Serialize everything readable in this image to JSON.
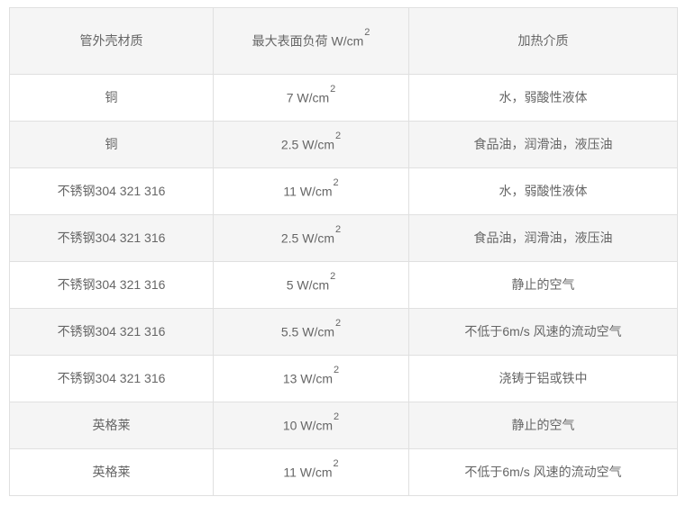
{
  "table": {
    "header": {
      "material": "管外壳材质",
      "load": "最大表面负荷 W/cm",
      "load_sup": "2",
      "medium": "加热介质"
    },
    "colors": {
      "border": "#e0e0e0",
      "stripe_bg": "#f5f5f5",
      "text": "#666666"
    },
    "rows": [
      {
        "material": "铜",
        "load": "7 W/cm",
        "load_sup": "2",
        "medium": "水，弱酸性液体"
      },
      {
        "material": "铜",
        "load": "2.5 W/cm",
        "load_sup": "2",
        "medium": "食品油，润滑油，液压油"
      },
      {
        "material": "不锈钢304 321 316",
        "load": "11 W/cm",
        "load_sup": "2",
        "medium": "水，弱酸性液体"
      },
      {
        "material": "不锈钢304 321 316",
        "load": "2.5 W/cm",
        "load_sup": "2",
        "medium": "食品油，润滑油，液压油"
      },
      {
        "material": "不锈钢304 321 316",
        "load": "5 W/cm",
        "load_sup": "2",
        "medium": "静止的空气"
      },
      {
        "material": "不锈钢304 321 316",
        "load": "5.5 W/cm",
        "load_sup": "2",
        "medium": "不低于6m/s 风速的流动空气"
      },
      {
        "material": "不锈钢304 321 316",
        "load": "13 W/cm",
        "load_sup": "2",
        "medium": "浇铸于铝或铁中"
      },
      {
        "material": "英格莱",
        "load": "10 W/cm",
        "load_sup": "2",
        "medium": "静止的空气"
      },
      {
        "material": "英格莱",
        "load": "11 W/cm",
        "load_sup": "2",
        "medium": "不低于6m/s 风速的流动空气"
      }
    ]
  }
}
